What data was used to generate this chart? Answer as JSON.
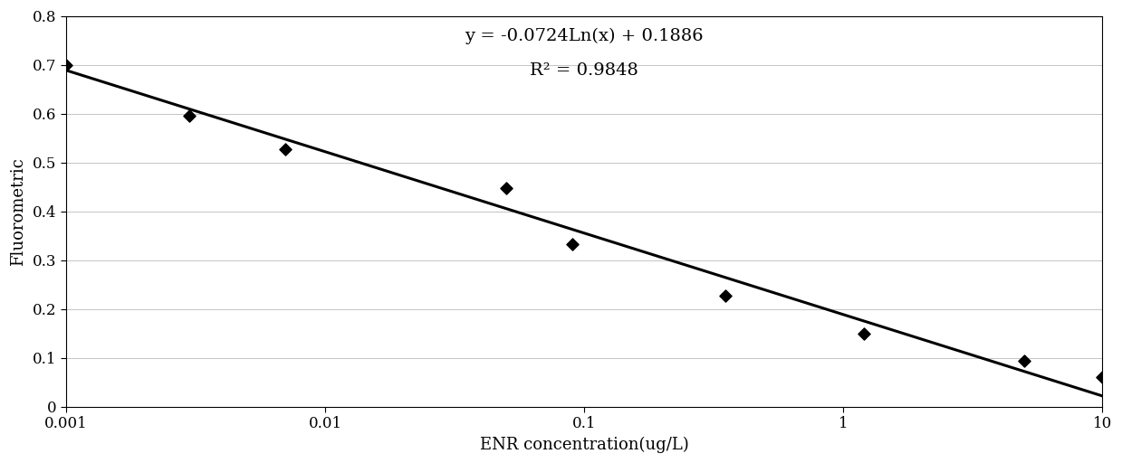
{
  "title_line1": "y = -0.0724Ln(x) + 0.1886",
  "title_line2": "R² = 0.9848",
  "xlabel": "ENR concentration(ug/L)",
  "ylabel": "Fluorometric",
  "xlim": [
    0.001,
    10
  ],
  "ylim": [
    0,
    0.8
  ],
  "yticks": [
    0,
    0.1,
    0.2,
    0.3,
    0.4,
    0.5,
    0.6,
    0.7,
    0.8
  ],
  "data_points_x": [
    0.001,
    0.003,
    0.007,
    0.05,
    0.09,
    0.35,
    1.2,
    5.0,
    10.0
  ],
  "data_points_y": [
    0.7,
    0.595,
    0.527,
    0.447,
    0.332,
    0.228,
    0.15,
    0.093,
    0.06
  ],
  "a": -0.0724,
  "b": 0.1886,
  "line_color": "#000000",
  "marker_color": "#000000",
  "bg_color": "#ffffff",
  "grid_color": "#bbbbbb",
  "title_fontsize": 14,
  "label_fontsize": 13,
  "tick_fontsize": 12
}
